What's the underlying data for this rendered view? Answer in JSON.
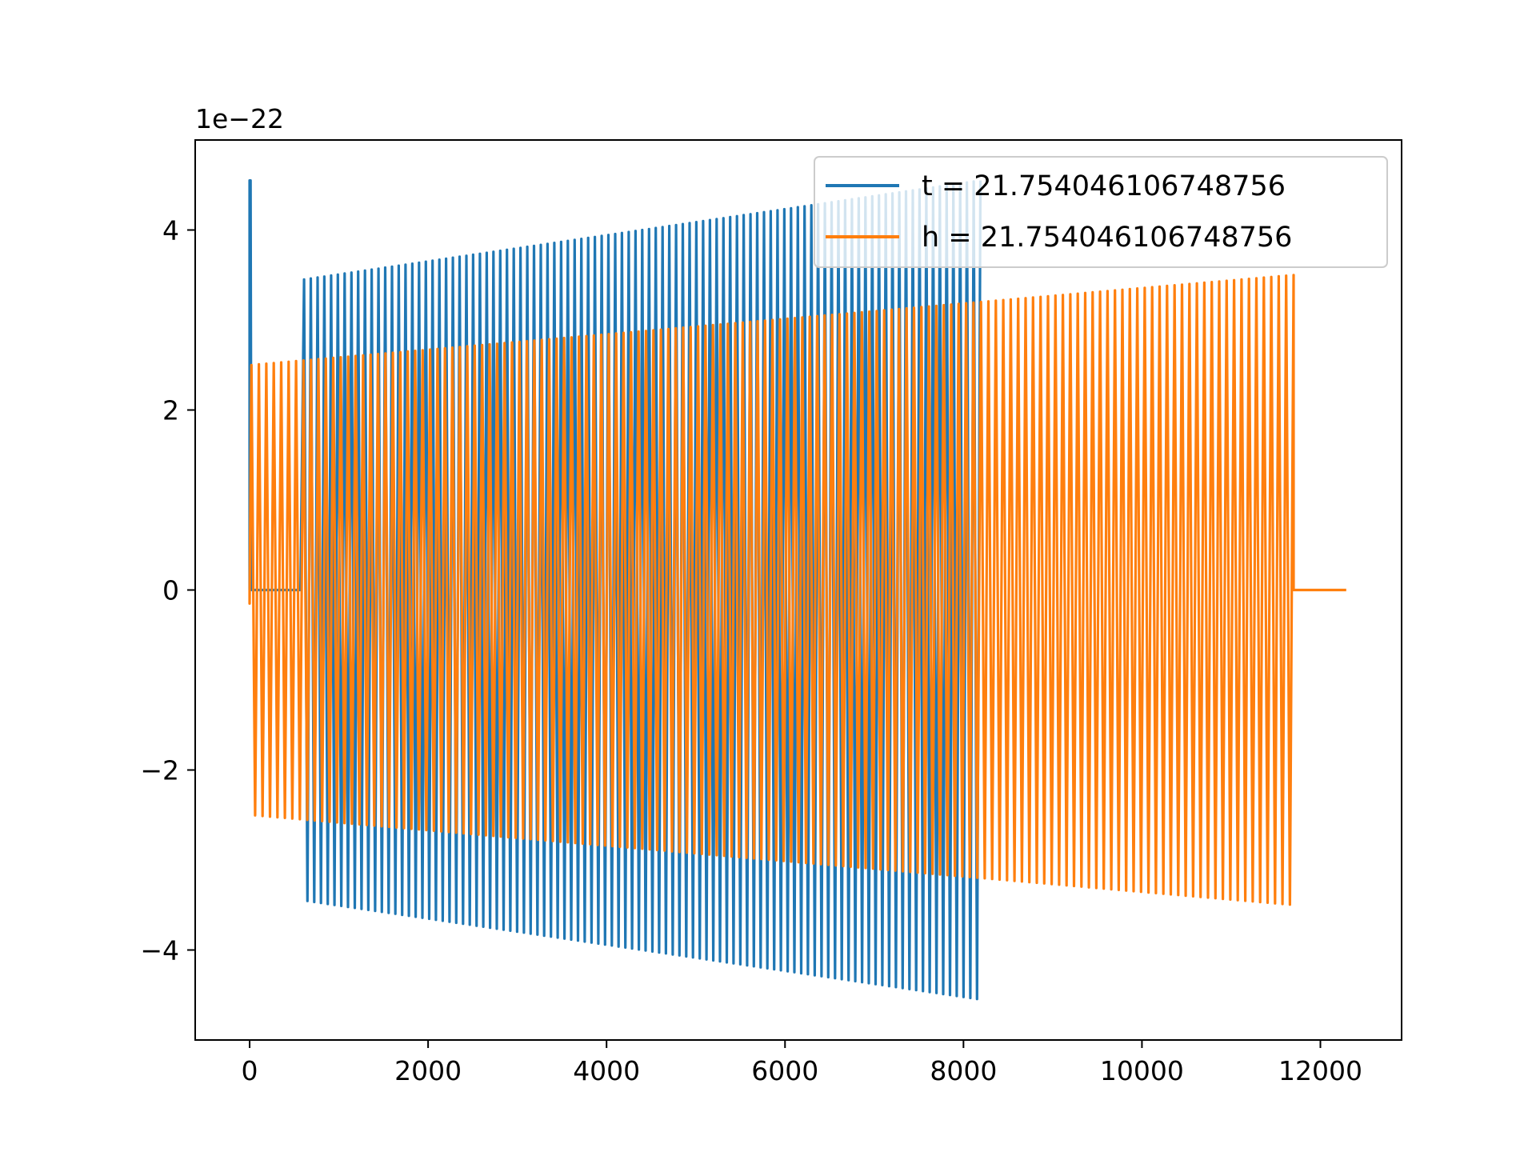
{
  "chart_data": {
    "type": "line",
    "title": "",
    "xlabel": "",
    "ylabel": "",
    "y_offset_label": "1e−22",
    "xlim": [
      -610,
      12910
    ],
    "ylim": [
      -5.0,
      5.0
    ],
    "x_ticks": [
      0,
      2000,
      4000,
      6000,
      8000,
      10000,
      12000
    ],
    "x_tick_labels": [
      "0",
      "2000",
      "4000",
      "6000",
      "8000",
      "10000",
      "12000"
    ],
    "y_ticks": [
      -4,
      -2,
      0,
      2,
      4
    ],
    "y_tick_labels": [
      "−4",
      "−2",
      "0",
      "2",
      "4"
    ],
    "grid": false,
    "legend_position": "top-right",
    "series": [
      {
        "name": "t = 21.754046106748756",
        "color": "#1f77b4",
        "x_start": 0,
        "x_end": 8190,
        "initial_spike": 4.55,
        "signal_start": 610,
        "cycles": 100,
        "amplitude_start": 3.45,
        "amplitude_end": 4.55
      },
      {
        "name": "h = 21.754046106748756",
        "color": "#ff7f0e",
        "x_start": 0,
        "x_end": 12290,
        "initial_dip": -0.15,
        "signal_start": 20,
        "signal_end": 11700,
        "cycles": 140,
        "amplitude_start": 2.5,
        "amplitude_end": 3.5
      }
    ]
  }
}
